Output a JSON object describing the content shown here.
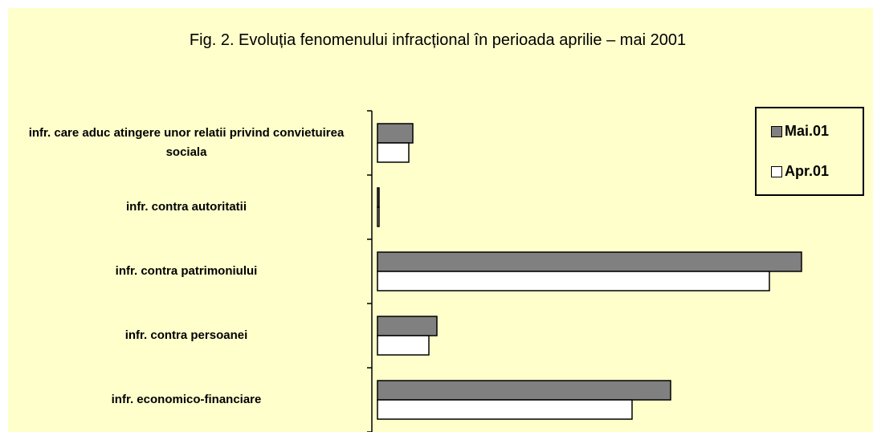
{
  "chart_data": {
    "type": "hbar",
    "title": "Fig. 2. Evoluția fenomenului infracțional în perioada aprilie – mai 2001",
    "categories": [
      "infr. care aduc atingere unor relatii privind convietuirea sociala",
      "infr. contra autoritatii",
      "infr. contra patrimoniului",
      "infr. contra persoanei",
      "infr. economico-financiare"
    ],
    "series": [
      {
        "name": "Mai.01",
        "color": "#808080",
        "values": [
          44,
          2,
          528,
          74,
          365
        ]
      },
      {
        "name": "Apr.01",
        "color": "#ffffff",
        "values": [
          39,
          2,
          488,
          64,
          317
        ]
      }
    ],
    "xlim": [
      0,
      600
    ],
    "legend": "top-right"
  }
}
